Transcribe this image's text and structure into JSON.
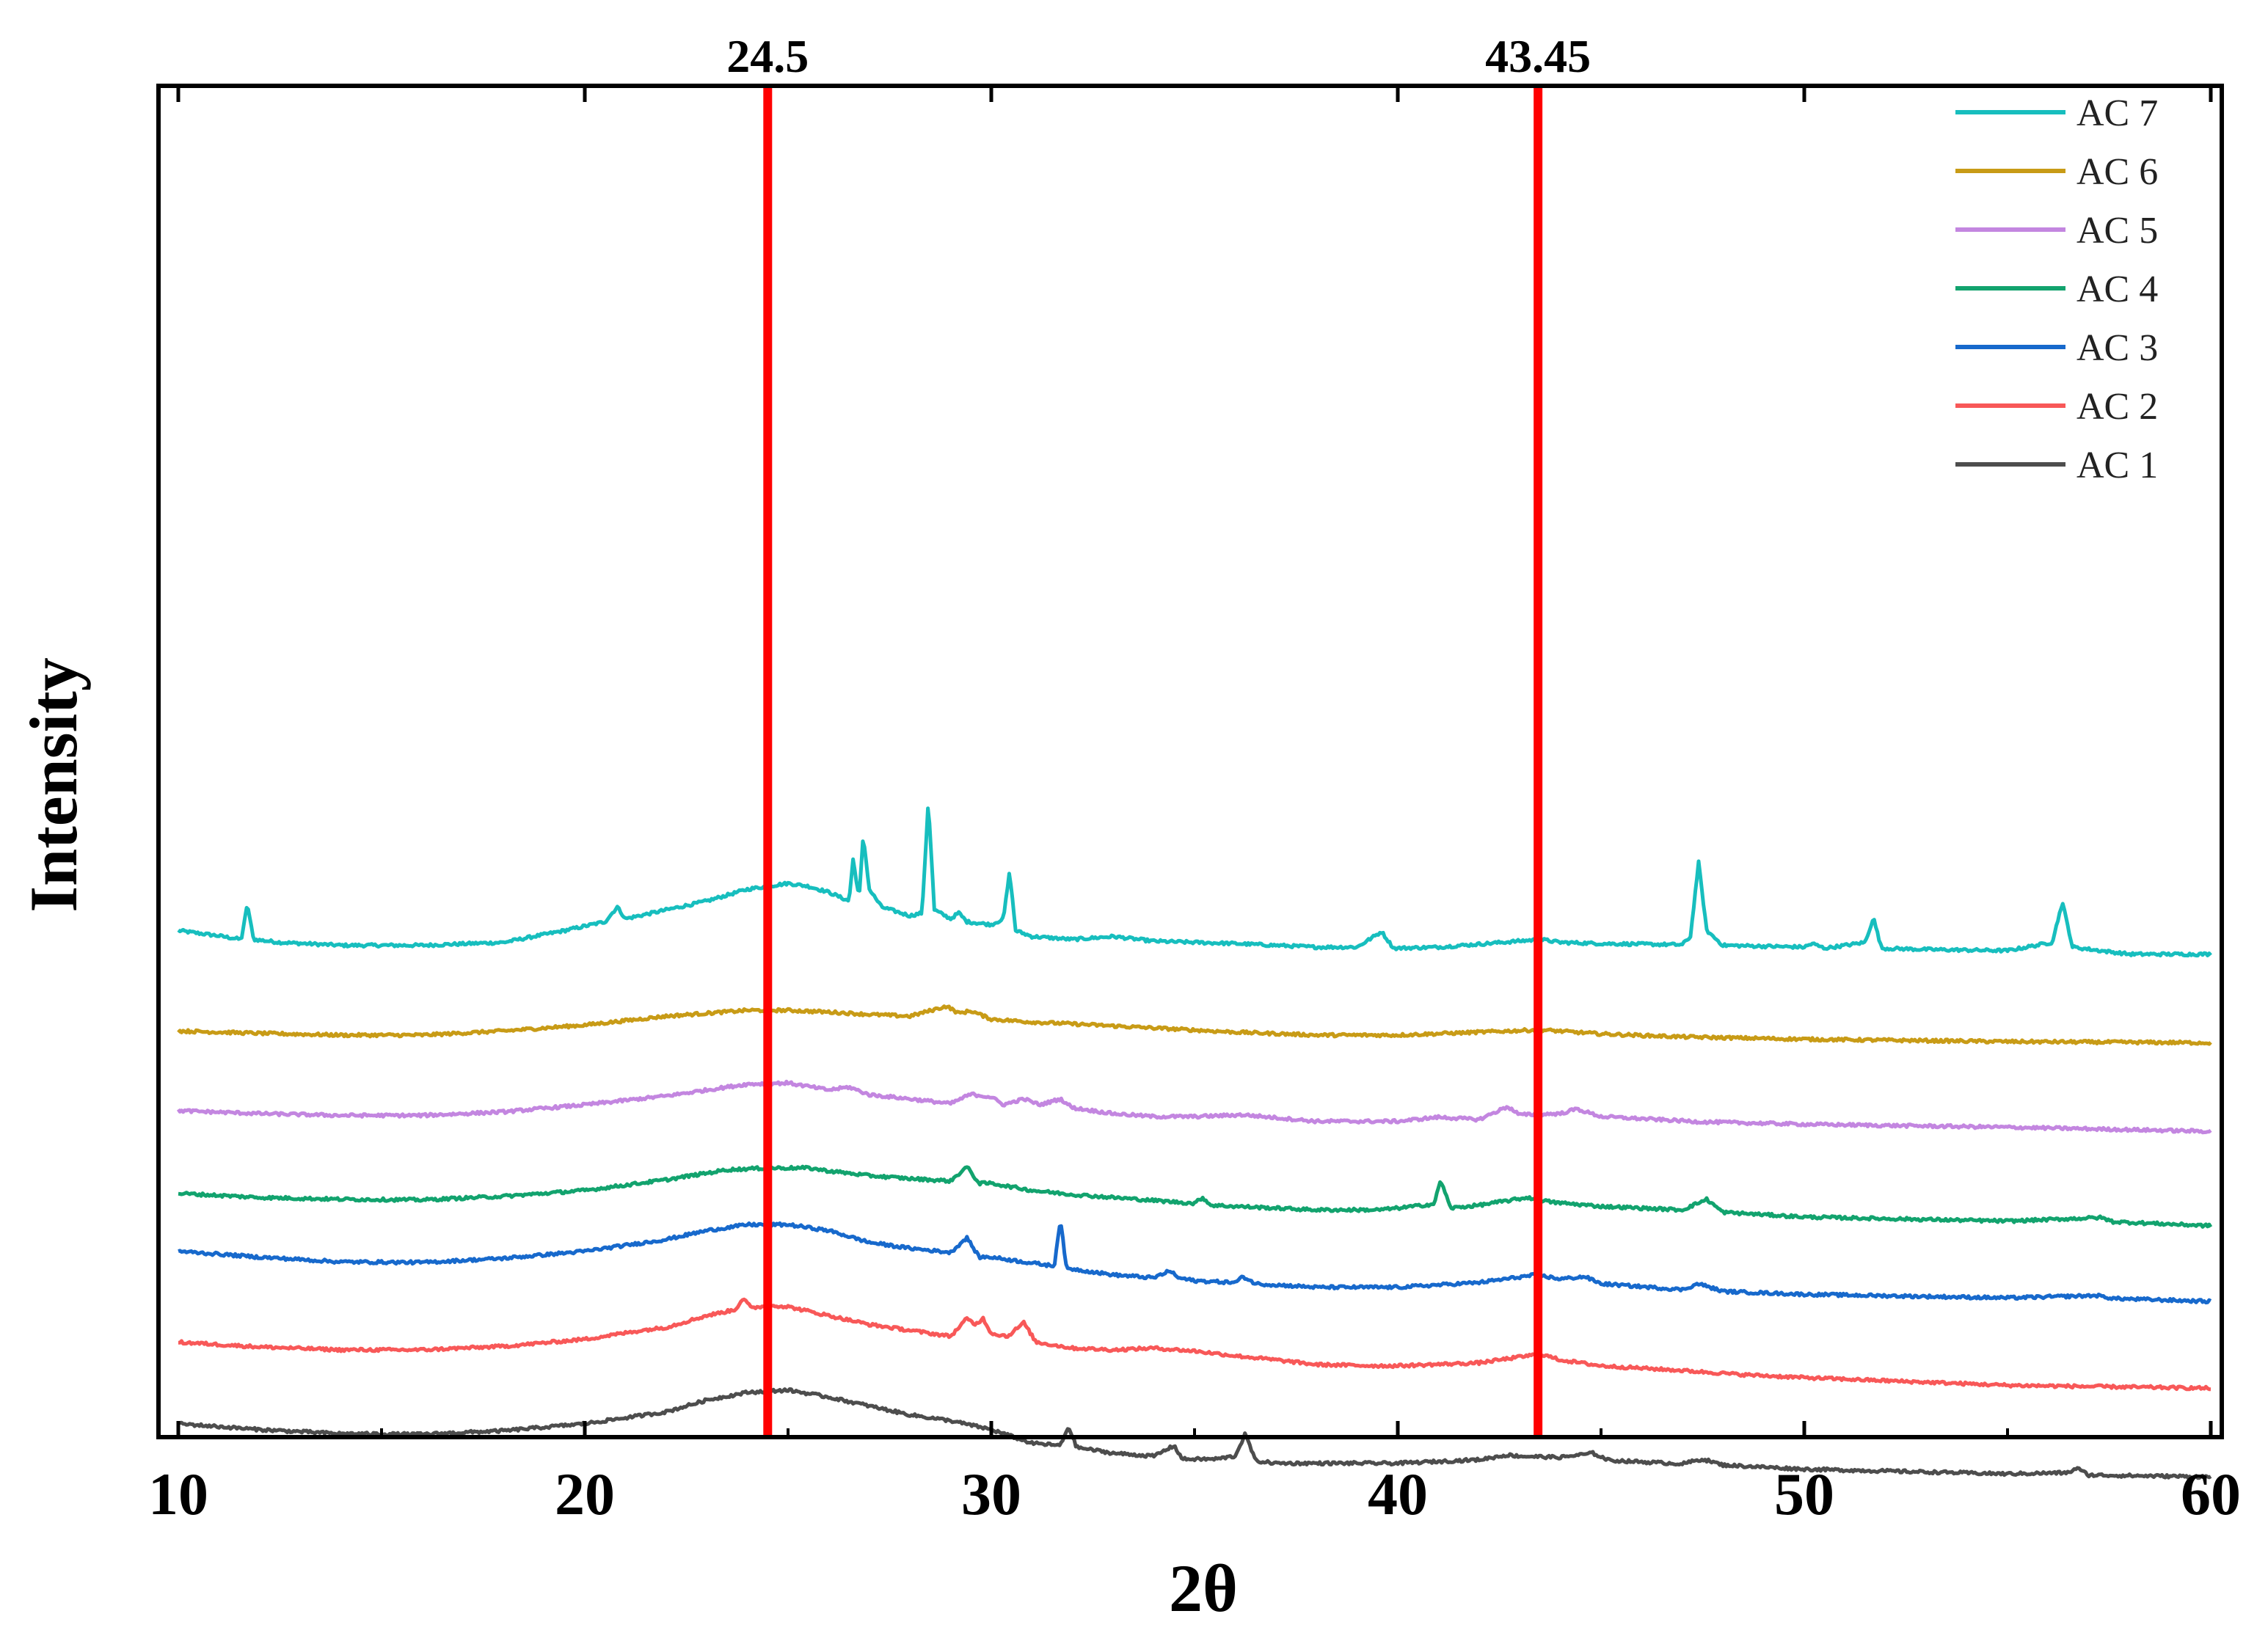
{
  "chart_data": {
    "type": "line",
    "title": "",
    "xlabel": "2θ",
    "ylabel": "Intensity",
    "xlim": [
      10,
      60
    ],
    "xticks": [
      10,
      20,
      30,
      40,
      50,
      60
    ],
    "xtick_labels": [
      "10",
      "20",
      "30",
      "40",
      "50",
      "60"
    ],
    "yticks_shown": false,
    "reference_lines": [
      {
        "x": 24.5,
        "label": "24.5",
        "color": "#ff0000"
      },
      {
        "x": 43.45,
        "label": "43.45",
        "color": "#ff0000"
      }
    ],
    "legend_position": "top-right",
    "series": [
      {
        "name": "AC 7",
        "color": "#17bebe",
        "offset": 6.6,
        "points": [
          [
            10,
            0.4
          ],
          [
            11,
            0.31
          ],
          [
            11.55,
            0.25
          ],
          [
            11.7,
            0.85
          ],
          [
            11.85,
            0.25
          ],
          [
            12.5,
            0.2
          ],
          [
            14,
            0.15
          ],
          [
            16,
            0.15
          ],
          [
            18,
            0.2
          ],
          [
            19.5,
            0.4
          ],
          [
            20.5,
            0.55
          ],
          [
            20.8,
            0.8
          ],
          [
            21,
            0.6
          ],
          [
            22,
            0.75
          ],
          [
            23,
            0.9
          ],
          [
            24,
            1.1
          ],
          [
            25,
            1.2
          ],
          [
            25.5,
            1.15
          ],
          [
            26,
            1.05
          ],
          [
            26.5,
            0.9
          ],
          [
            26.6,
            1.6
          ],
          [
            26.75,
            0.95
          ],
          [
            26.85,
            2.0
          ],
          [
            27,
            1.1
          ],
          [
            27.3,
            0.8
          ],
          [
            28,
            0.65
          ],
          [
            28.3,
            0.7
          ],
          [
            28.45,
            2.6
          ],
          [
            28.6,
            0.75
          ],
          [
            29,
            0.6
          ],
          [
            29.2,
            0.7
          ],
          [
            29.4,
            0.55
          ],
          [
            30,
            0.5
          ],
          [
            30.3,
            0.6
          ],
          [
            30.45,
            1.4
          ],
          [
            30.6,
            0.4
          ],
          [
            31,
            0.3
          ],
          [
            32,
            0.25
          ],
          [
            33,
            0.3
          ],
          [
            34,
            0.22
          ],
          [
            36,
            0.18
          ],
          [
            38,
            0.12
          ],
          [
            39,
            0.12
          ],
          [
            39.6,
            0.38
          ],
          [
            39.9,
            0.1
          ],
          [
            41,
            0.12
          ],
          [
            42,
            0.17
          ],
          [
            43.5,
            0.25
          ],
          [
            44,
            0.2
          ],
          [
            45,
            0.18
          ],
          [
            47,
            0.16
          ],
          [
            47.2,
            0.3
          ],
          [
            47.4,
            1.55
          ],
          [
            47.6,
            0.4
          ],
          [
            48,
            0.15
          ],
          [
            50,
            0.12
          ],
          [
            50.2,
            0.18
          ],
          [
            50.5,
            0.1
          ],
          [
            51.5,
            0.2
          ],
          [
            51.7,
            0.62
          ],
          [
            51.9,
            0.1
          ],
          [
            53,
            0.08
          ],
          [
            55,
            0.06
          ],
          [
            56.1,
            0.2
          ],
          [
            56.35,
            0.88
          ],
          [
            56.6,
            0.12
          ],
          [
            57.4,
            0.05
          ],
          [
            58,
            0.0
          ],
          [
            60,
            0.0
          ]
        ]
      },
      {
        "name": "AC 6",
        "color": "#c89b16",
        "offset": 5.1,
        "points": [
          [
            10,
            0.2
          ],
          [
            12,
            0.16
          ],
          [
            14,
            0.13
          ],
          [
            16,
            0.13
          ],
          [
            18,
            0.2
          ],
          [
            20,
            0.3
          ],
          [
            22,
            0.45
          ],
          [
            24,
            0.55
          ],
          [
            25,
            0.55
          ],
          [
            26,
            0.52
          ],
          [
            27,
            0.48
          ],
          [
            28,
            0.45
          ],
          [
            28.9,
            0.62
          ],
          [
            29.2,
            0.5
          ],
          [
            29.5,
            0.54
          ],
          [
            30,
            0.4
          ],
          [
            31,
            0.35
          ],
          [
            32,
            0.32
          ],
          [
            34,
            0.25
          ],
          [
            36,
            0.18
          ],
          [
            38,
            0.13
          ],
          [
            40,
            0.13
          ],
          [
            42,
            0.18
          ],
          [
            43.5,
            0.22
          ],
          [
            45,
            0.15
          ],
          [
            47,
            0.1
          ],
          [
            50,
            0.06
          ],
          [
            55,
            0.02
          ],
          [
            60,
            0.0
          ]
        ]
      },
      {
        "name": "AC 5",
        "color": "#c386e0",
        "offset": 3.6,
        "points": [
          [
            10,
            0.35
          ],
          [
            12,
            0.3
          ],
          [
            14,
            0.27
          ],
          [
            16,
            0.27
          ],
          [
            18,
            0.33
          ],
          [
            20,
            0.45
          ],
          [
            22,
            0.6
          ],
          [
            24,
            0.8
          ],
          [
            25,
            0.82
          ],
          [
            26,
            0.7
          ],
          [
            26.5,
            0.75
          ],
          [
            27,
            0.62
          ],
          [
            28,
            0.55
          ],
          [
            29,
            0.47
          ],
          [
            29.5,
            0.63
          ],
          [
            30,
            0.58
          ],
          [
            30.3,
            0.45
          ],
          [
            30.8,
            0.55
          ],
          [
            31.2,
            0.45
          ],
          [
            31.7,
            0.55
          ],
          [
            32,
            0.4
          ],
          [
            33,
            0.3
          ],
          [
            34,
            0.25
          ],
          [
            35,
            0.25
          ],
          [
            36.2,
            0.28
          ],
          [
            38,
            0.17
          ],
          [
            40,
            0.17
          ],
          [
            41,
            0.24
          ],
          [
            42,
            0.2
          ],
          [
            42.7,
            0.42
          ],
          [
            43,
            0.28
          ],
          [
            44,
            0.3
          ],
          [
            44.4,
            0.38
          ],
          [
            45,
            0.25
          ],
          [
            47.5,
            0.16
          ],
          [
            50,
            0.12
          ],
          [
            55,
            0.07
          ],
          [
            60,
            0.0
          ]
        ]
      },
      {
        "name": "AC 4",
        "color": "#12a36e",
        "offset": 2.0,
        "points": [
          [
            10,
            0.55
          ],
          [
            12,
            0.48
          ],
          [
            14,
            0.45
          ],
          [
            16,
            0.44
          ],
          [
            18,
            0.5
          ],
          [
            20,
            0.6
          ],
          [
            22,
            0.78
          ],
          [
            23.5,
            0.95
          ],
          [
            24.5,
            0.98
          ],
          [
            25.5,
            0.98
          ],
          [
            26,
            0.93
          ],
          [
            27,
            0.85
          ],
          [
            28,
            0.8
          ],
          [
            29,
            0.76
          ],
          [
            29.4,
            1.0
          ],
          [
            29.7,
            0.72
          ],
          [
            30,
            0.72
          ],
          [
            31,
            0.6
          ],
          [
            32,
            0.53
          ],
          [
            33,
            0.48
          ],
          [
            35,
            0.38
          ],
          [
            35.2,
            0.48
          ],
          [
            35.4,
            0.35
          ],
          [
            36,
            0.33
          ],
          [
            38,
            0.27
          ],
          [
            39.5,
            0.27
          ],
          [
            40,
            0.3
          ],
          [
            40.9,
            0.37
          ],
          [
            41.05,
            0.78
          ],
          [
            41.3,
            0.3
          ],
          [
            42,
            0.35
          ],
          [
            43.2,
            0.48
          ],
          [
            43.8,
            0.4
          ],
          [
            45,
            0.33
          ],
          [
            47,
            0.27
          ],
          [
            47.6,
            0.45
          ],
          [
            48,
            0.23
          ],
          [
            50,
            0.15
          ],
          [
            55,
            0.08
          ],
          [
            57.3,
            0.14
          ],
          [
            57.6,
            0.07
          ],
          [
            60,
            0.0
          ]
        ]
      },
      {
        "name": "AC 3",
        "color": "#1769cc",
        "offset": 0.72,
        "points": [
          [
            10,
            0.85
          ],
          [
            12,
            0.75
          ],
          [
            14,
            0.67
          ],
          [
            16,
            0.66
          ],
          [
            18,
            0.73
          ],
          [
            20,
            0.85
          ],
          [
            22,
            1.05
          ],
          [
            23,
            1.2
          ],
          [
            24,
            1.3
          ],
          [
            25,
            1.3
          ],
          [
            26,
            1.2
          ],
          [
            27,
            1.0
          ],
          [
            28,
            0.9
          ],
          [
            29,
            0.83
          ],
          [
            29.4,
            1.08
          ],
          [
            29.7,
            0.75
          ],
          [
            30,
            0.75
          ],
          [
            31,
            0.65
          ],
          [
            31.55,
            0.6
          ],
          [
            31.7,
            1.4
          ],
          [
            31.85,
            0.55
          ],
          [
            32,
            0.55
          ],
          [
            33,
            0.45
          ],
          [
            34,
            0.4
          ],
          [
            34.4,
            0.52
          ],
          [
            34.6,
            0.4
          ],
          [
            35,
            0.35
          ],
          [
            36,
            0.32
          ],
          [
            36.2,
            0.42
          ],
          [
            36.5,
            0.3
          ],
          [
            38,
            0.24
          ],
          [
            40,
            0.24
          ],
          [
            42,
            0.32
          ],
          [
            43.4,
            0.45
          ],
          [
            44,
            0.38
          ],
          [
            44.6,
            0.42
          ],
          [
            45,
            0.3
          ],
          [
            47,
            0.2
          ],
          [
            47.4,
            0.3
          ],
          [
            48,
            0.17
          ],
          [
            50,
            0.12
          ],
          [
            55,
            0.06
          ],
          [
            57.2,
            0.1
          ],
          [
            57.6,
            0.05
          ],
          [
            60,
            0.0
          ]
        ]
      },
      {
        "name": "AC 2",
        "color": "#f85858",
        "offset": -0.82,
        "points": [
          [
            10,
            0.85
          ],
          [
            12,
            0.77
          ],
          [
            14,
            0.72
          ],
          [
            16,
            0.72
          ],
          [
            18,
            0.78
          ],
          [
            20,
            0.9
          ],
          [
            21.4,
            1.05
          ],
          [
            22,
            1.1
          ],
          [
            23,
            1.3
          ],
          [
            23.7,
            1.4
          ],
          [
            23.9,
            1.6
          ],
          [
            24.1,
            1.42
          ],
          [
            24.5,
            1.48
          ],
          [
            25,
            1.45
          ],
          [
            26,
            1.3
          ],
          [
            27,
            1.15
          ],
          [
            28,
            1.05
          ],
          [
            29,
            0.95
          ],
          [
            29.4,
            1.25
          ],
          [
            29.6,
            1.15
          ],
          [
            29.8,
            1.25
          ],
          [
            30,
            1.0
          ],
          [
            30.4,
            0.95
          ],
          [
            30.8,
            1.18
          ],
          [
            31.1,
            0.85
          ],
          [
            32,
            0.75
          ],
          [
            33,
            0.72
          ],
          [
            34,
            0.75
          ],
          [
            35,
            0.7
          ],
          [
            36,
            0.62
          ],
          [
            37,
            0.55
          ],
          [
            38,
            0.47
          ],
          [
            39.5,
            0.45
          ],
          [
            40,
            0.45
          ],
          [
            42,
            0.5
          ],
          [
            43.5,
            0.65
          ],
          [
            44,
            0.55
          ],
          [
            45,
            0.45
          ],
          [
            47,
            0.37
          ],
          [
            48.5,
            0.3
          ],
          [
            50,
            0.25
          ],
          [
            55,
            0.12
          ],
          [
            60,
            0.07
          ]
        ]
      },
      {
        "name": "AC 1",
        "color": "#4d4d4d",
        "offset": -2.3,
        "points": [
          [
            10,
            0.95
          ],
          [
            12,
            0.85
          ],
          [
            14,
            0.78
          ],
          [
            16,
            0.77
          ],
          [
            18,
            0.83
          ],
          [
            20,
            0.95
          ],
          [
            22,
            1.15
          ],
          [
            23,
            1.35
          ],
          [
            24,
            1.48
          ],
          [
            25,
            1.52
          ],
          [
            26,
            1.4
          ],
          [
            27,
            1.25
          ],
          [
            28,
            1.1
          ],
          [
            29,
            1.0
          ],
          [
            30,
            0.85
          ],
          [
            31,
            0.62
          ],
          [
            31.7,
            0.58
          ],
          [
            31.9,
            0.9
          ],
          [
            32.1,
            0.55
          ],
          [
            33,
            0.45
          ],
          [
            34,
            0.4
          ],
          [
            34.5,
            0.58
          ],
          [
            34.7,
            0.35
          ],
          [
            35.5,
            0.35
          ],
          [
            36,
            0.4
          ],
          [
            36.25,
            0.78
          ],
          [
            36.5,
            0.32
          ],
          [
            37,
            0.28
          ],
          [
            38,
            0.28
          ],
          [
            40,
            0.28
          ],
          [
            42,
            0.34
          ],
          [
            42.7,
            0.42
          ],
          [
            43,
            0.4
          ],
          [
            44,
            0.38
          ],
          [
            44.8,
            0.45
          ],
          [
            45.2,
            0.33
          ],
          [
            47,
            0.27
          ],
          [
            47.5,
            0.35
          ],
          [
            48,
            0.25
          ],
          [
            50,
            0.18
          ],
          [
            55,
            0.1
          ],
          [
            56.5,
            0.12
          ],
          [
            56.7,
            0.2
          ],
          [
            57,
            0.08
          ],
          [
            60,
            0.05
          ]
        ]
      }
    ]
  }
}
